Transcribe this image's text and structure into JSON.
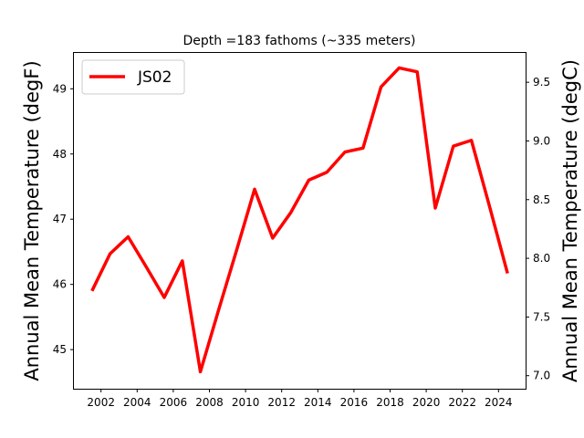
{
  "chart_data": {
    "type": "line",
    "title": "Depth =183 fathoms (~335 meters)",
    "ylabel": "Annual Mean Temperature (degF)",
    "ylabel_right": "Annual Mean Temperature (degC)",
    "xlim": [
      2000.5,
      2025.5
    ],
    "ylim": [
      44.4,
      49.55
    ],
    "ylim_right_degC": [
      6.888889,
      9.75
    ],
    "x_ticks": [
      2002,
      2004,
      2006,
      2008,
      2010,
      2012,
      2014,
      2016,
      2018,
      2020,
      2022,
      2024
    ],
    "y_ticks": [
      45,
      46,
      47,
      48,
      49
    ],
    "y_ticks_right": [
      7.0,
      7.5,
      8.0,
      8.5,
      9.0,
      9.5
    ],
    "y_ticks_right_labels": [
      "7.0",
      "7.5",
      "8.0",
      "8.5",
      "9.0",
      "9.5"
    ],
    "legend_position": "upper-left",
    "grid": false,
    "series": [
      {
        "name": "JS02",
        "color": "#ff0000",
        "x": [
          2001.5,
          2002.5,
          2003.5,
          2004.5,
          2005.5,
          2006.5,
          2007.5,
          2008.5,
          2009.5,
          2010.5,
          2011.5,
          2012.5,
          2013.5,
          2014.5,
          2015.5,
          2016.5,
          2017.5,
          2018.5,
          2019.5,
          2020.5,
          2021.5,
          2022.5,
          2023.5,
          2024.5
        ],
        "y": [
          45.9,
          46.47,
          46.73,
          46.27,
          45.8,
          46.36,
          44.66,
          45.6,
          46.52,
          47.46,
          46.71,
          47.1,
          47.6,
          47.72,
          48.03,
          48.09,
          49.03,
          49.32,
          49.26,
          47.17,
          48.12,
          48.21,
          47.2,
          46.17
        ]
      }
    ]
  }
}
